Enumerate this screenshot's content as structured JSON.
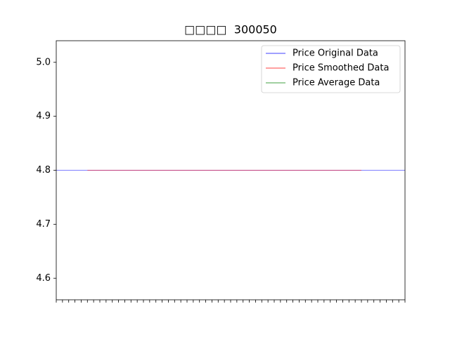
{
  "chart_data": {
    "type": "line",
    "title": "□□□□  300050",
    "categories": [
      null,
      null,
      null,
      null,
      null,
      null,
      null,
      null,
      null,
      null,
      null,
      null,
      null,
      null,
      null,
      null,
      null,
      null,
      null,
      null,
      null,
      null,
      null,
      null,
      null,
      null,
      null,
      null,
      null,
      null,
      null,
      null,
      null,
      null,
      null,
      null,
      null,
      null,
      null,
      null,
      null,
      null,
      null,
      null,
      null,
      null,
      null,
      null,
      null,
      null,
      null,
      null,
      null,
      null,
      null,
      null,
      null
    ],
    "series": [
      {
        "name": "Price Original Data",
        "color": "#0000ff",
        "values": [
          4.8,
          4.8,
          4.8,
          4.8,
          4.8,
          4.8,
          4.8,
          4.8,
          4.8,
          4.8,
          4.8,
          4.8,
          4.8,
          4.8,
          4.8,
          4.8,
          4.8,
          4.8,
          4.8,
          4.8,
          4.8,
          4.8,
          4.8,
          4.8,
          4.8,
          4.8,
          4.8,
          4.8,
          4.8,
          4.8,
          4.8,
          4.8,
          4.8,
          4.8,
          4.8,
          4.8,
          4.8,
          4.8,
          4.8,
          4.8,
          4.8,
          4.8,
          4.8,
          4.8,
          4.8,
          4.8,
          4.8,
          4.8,
          4.8,
          4.8,
          4.8,
          4.8,
          4.8,
          4.8,
          4.8,
          4.8,
          4.8
        ]
      },
      {
        "name": "Price Smoothed Data",
        "color": "#ff0000",
        "values": [
          null,
          null,
          null,
          null,
          null,
          4.8,
          4.8,
          4.8,
          4.8,
          4.8,
          4.8,
          4.8,
          4.8,
          4.8,
          4.8,
          4.8,
          4.8,
          4.8,
          4.8,
          4.8,
          4.8,
          4.8,
          4.8,
          4.8,
          4.8,
          4.8,
          4.8,
          4.8,
          4.8,
          4.8,
          4.8,
          4.8,
          4.8,
          4.8,
          4.8,
          4.8,
          4.8,
          4.8,
          4.8,
          4.8,
          4.8,
          4.8,
          4.8,
          4.8,
          4.8,
          4.8,
          4.8,
          4.8,
          4.8,
          4.8,
          null,
          null,
          null,
          null,
          null,
          null,
          null
        ]
      },
      {
        "name": "Price Average Data",
        "color": "#008000",
        "values": [
          null,
          null,
          null,
          null,
          null,
          null,
          null,
          null,
          null,
          null,
          null,
          null,
          null,
          null,
          null,
          null,
          null,
          null,
          null,
          null,
          null,
          null,
          null,
          null,
          null,
          null,
          null,
          null,
          null,
          null,
          null,
          null,
          null,
          null,
          null,
          null,
          null,
          null,
          null,
          null,
          null,
          null,
          null,
          null,
          null,
          null,
          null,
          null,
          null,
          null,
          null,
          null,
          null,
          null,
          null,
          null,
          null
        ]
      }
    ],
    "ylim": [
      4.56,
      5.04
    ],
    "yticks": [
      4.6,
      4.7,
      4.8,
      4.9,
      {
        "value": 5,
        "label": "5.0"
      }
    ],
    "legend": "upper right"
  }
}
